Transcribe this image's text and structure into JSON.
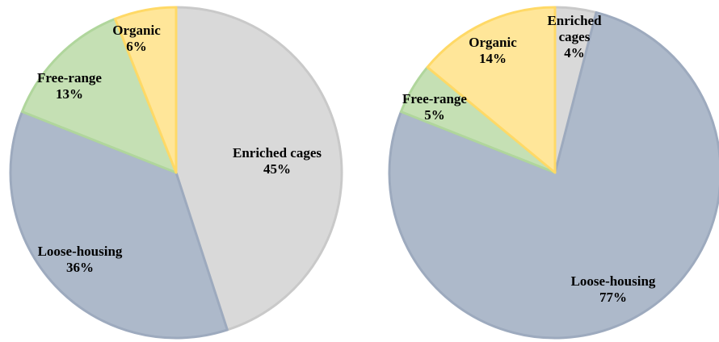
{
  "chart_data": [
    {
      "type": "pie",
      "categories": [
        "Enriched cages",
        "Loose-housing",
        "Free-range",
        "Organic"
      ],
      "values": [
        45,
        36,
        13,
        6
      ],
      "label_lines": [
        [
          "Enriched cages",
          "45%"
        ],
        [
          "Loose-housing",
          "36%"
        ],
        [
          "Free-range",
          "13%"
        ],
        [
          "Organic",
          "6%"
        ]
      ],
      "colors": [
        "#d9d9d9",
        "#adb9ca",
        "#c5e0b4",
        "#ffe699"
      ],
      "borders": [
        "#c9c9c9",
        "#9daabe",
        "#b0d69c",
        "#ffd966"
      ],
      "start_angle_deg": 0,
      "direction": "clockwise"
    },
    {
      "type": "pie",
      "categories": [
        "Enriched cages",
        "Loose-housing",
        "Free-range",
        "Organic"
      ],
      "values": [
        4,
        77,
        5,
        14
      ],
      "label_lines": [
        [
          "Enriched",
          "cages",
          "4%"
        ],
        [
          "Loose-housing",
          "77%"
        ],
        [
          "Free-range",
          "5%"
        ],
        [
          "Organic",
          "14%"
        ]
      ],
      "colors": [
        "#d9d9d9",
        "#adb9ca",
        "#c5e0b4",
        "#ffe699"
      ],
      "borders": [
        "#c9c9c9",
        "#9daabe",
        "#b0d69c",
        "#ffd966"
      ],
      "start_angle_deg": 0,
      "direction": "clockwise"
    }
  ]
}
